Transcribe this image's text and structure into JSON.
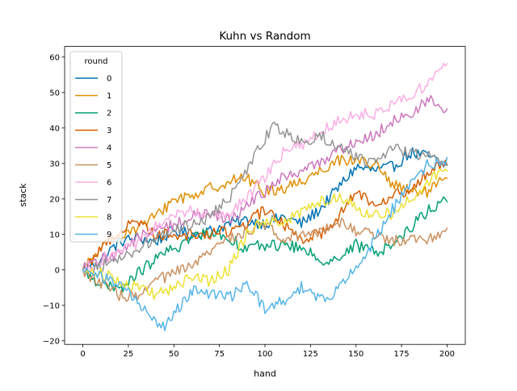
{
  "chart_data": {
    "type": "line",
    "title": "Kuhn vs Random",
    "xlabel": "hand",
    "ylabel": "stack",
    "xlim": [
      -10,
      210
    ],
    "ylim": [
      -21,
      63
    ],
    "xticks": [
      0,
      25,
      50,
      75,
      100,
      125,
      150,
      175,
      200
    ],
    "yticks": [
      -20,
      -10,
      0,
      10,
      20,
      30,
      40,
      50,
      60
    ],
    "grid": false,
    "legend": {
      "title": "round",
      "placement": "top-left"
    },
    "series": [
      {
        "name": "0",
        "color": "#0173b2",
        "noise": 1.7,
        "anchors": [
          [
            0,
            0
          ],
          [
            10,
            3
          ],
          [
            20,
            8
          ],
          [
            30,
            9
          ],
          [
            40,
            8
          ],
          [
            50,
            11
          ],
          [
            60,
            10
          ],
          [
            70,
            11
          ],
          [
            80,
            13
          ],
          [
            90,
            14
          ],
          [
            100,
            13
          ],
          [
            110,
            15
          ],
          [
            120,
            13
          ],
          [
            130,
            17
          ],
          [
            140,
            23
          ],
          [
            150,
            29
          ],
          [
            160,
            28
          ],
          [
            170,
            29
          ],
          [
            180,
            33
          ],
          [
            190,
            32
          ],
          [
            200,
            29
          ]
        ]
      },
      {
        "name": "1",
        "color": "#de8f05",
        "noise": 1.7,
        "anchors": [
          [
            0,
            0
          ],
          [
            10,
            6
          ],
          [
            20,
            10
          ],
          [
            30,
            12
          ],
          [
            40,
            15
          ],
          [
            50,
            20
          ],
          [
            60,
            21
          ],
          [
            70,
            23
          ],
          [
            80,
            25
          ],
          [
            90,
            26
          ],
          [
            100,
            22
          ],
          [
            110,
            23
          ],
          [
            120,
            25
          ],
          [
            130,
            28
          ],
          [
            140,
            31
          ],
          [
            150,
            31
          ],
          [
            160,
            30
          ],
          [
            170,
            24
          ],
          [
            180,
            22
          ],
          [
            190,
            22
          ],
          [
            200,
            26
          ]
        ]
      },
      {
        "name": "2",
        "color": "#029e73",
        "noise": 1.7,
        "anchors": [
          [
            0,
            0
          ],
          [
            10,
            -4
          ],
          [
            20,
            -6
          ],
          [
            30,
            -1
          ],
          [
            40,
            3
          ],
          [
            50,
            6
          ],
          [
            60,
            9
          ],
          [
            70,
            11
          ],
          [
            80,
            9
          ],
          [
            90,
            6
          ],
          [
            100,
            7
          ],
          [
            110,
            7
          ],
          [
            120,
            6
          ],
          [
            130,
            3
          ],
          [
            140,
            3
          ],
          [
            150,
            7
          ],
          [
            160,
            5
          ],
          [
            170,
            7
          ],
          [
            180,
            12
          ],
          [
            190,
            17
          ],
          [
            200,
            20
          ]
        ]
      },
      {
        "name": "3",
        "color": "#d55e00",
        "noise": 1.7,
        "anchors": [
          [
            0,
            0
          ],
          [
            10,
            6
          ],
          [
            20,
            11
          ],
          [
            30,
            14
          ],
          [
            40,
            10
          ],
          [
            50,
            10
          ],
          [
            60,
            10
          ],
          [
            70,
            10
          ],
          [
            80,
            11
          ],
          [
            90,
            13
          ],
          [
            100,
            17
          ],
          [
            110,
            13
          ],
          [
            120,
            9
          ],
          [
            130,
            10
          ],
          [
            140,
            15
          ],
          [
            150,
            22
          ],
          [
            160,
            19
          ],
          [
            170,
            21
          ],
          [
            180,
            22
          ],
          [
            190,
            28
          ],
          [
            200,
            31
          ]
        ]
      },
      {
        "name": "4",
        "color": "#cc78bc",
        "noise": 1.7,
        "anchors": [
          [
            0,
            0
          ],
          [
            10,
            3
          ],
          [
            20,
            5
          ],
          [
            30,
            9
          ],
          [
            40,
            11
          ],
          [
            50,
            13
          ],
          [
            60,
            15
          ],
          [
            70,
            16
          ],
          [
            80,
            14
          ],
          [
            90,
            18
          ],
          [
            100,
            22
          ],
          [
            110,
            26
          ],
          [
            120,
            28
          ],
          [
            130,
            30
          ],
          [
            140,
            34
          ],
          [
            150,
            36
          ],
          [
            160,
            38
          ],
          [
            170,
            42
          ],
          [
            180,
            44
          ],
          [
            190,
            48
          ],
          [
            200,
            44
          ]
        ]
      },
      {
        "name": "5",
        "color": "#ca9161",
        "noise": 1.7,
        "anchors": [
          [
            0,
            0
          ],
          [
            10,
            -4
          ],
          [
            20,
            -7
          ],
          [
            30,
            -8
          ],
          [
            40,
            -3
          ],
          [
            50,
            -1
          ],
          [
            60,
            1
          ],
          [
            70,
            5
          ],
          [
            80,
            9
          ],
          [
            90,
            11
          ],
          [
            100,
            13
          ],
          [
            110,
            9
          ],
          [
            120,
            10
          ],
          [
            130,
            11
          ],
          [
            140,
            14
          ],
          [
            150,
            11
          ],
          [
            160,
            10
          ],
          [
            170,
            8
          ],
          [
            180,
            9
          ],
          [
            190,
            9
          ],
          [
            200,
            11
          ]
        ]
      },
      {
        "name": "6",
        "color": "#fbafe4",
        "noise": 1.7,
        "anchors": [
          [
            0,
            0
          ],
          [
            10,
            3
          ],
          [
            20,
            5
          ],
          [
            30,
            7
          ],
          [
            40,
            12
          ],
          [
            50,
            15
          ],
          [
            60,
            17
          ],
          [
            70,
            15
          ],
          [
            80,
            16
          ],
          [
            90,
            20
          ],
          [
            100,
            26
          ],
          [
            110,
            33
          ],
          [
            120,
            35
          ],
          [
            130,
            39
          ],
          [
            140,
            42
          ],
          [
            150,
            44
          ],
          [
            160,
            44
          ],
          [
            170,
            47
          ],
          [
            180,
            49
          ],
          [
            190,
            53
          ],
          [
            200,
            58
          ]
        ]
      },
      {
        "name": "7",
        "color": "#949494",
        "noise": 1.7,
        "anchors": [
          [
            0,
            0
          ],
          [
            10,
            1
          ],
          [
            20,
            3
          ],
          [
            30,
            6
          ],
          [
            40,
            9
          ],
          [
            50,
            11
          ],
          [
            60,
            13
          ],
          [
            70,
            15
          ],
          [
            80,
            20
          ],
          [
            90,
            28
          ],
          [
            100,
            37
          ],
          [
            105,
            41
          ],
          [
            110,
            39
          ],
          [
            120,
            36
          ],
          [
            130,
            38
          ],
          [
            140,
            35
          ],
          [
            150,
            32
          ],
          [
            160,
            30
          ],
          [
            170,
            34
          ],
          [
            180,
            33
          ],
          [
            190,
            32
          ],
          [
            200,
            30
          ]
        ]
      },
      {
        "name": "8",
        "color": "#ece133",
        "noise": 1.7,
        "anchors": [
          [
            0,
            0
          ],
          [
            10,
            -1
          ],
          [
            20,
            -3
          ],
          [
            30,
            -5
          ],
          [
            40,
            -7
          ],
          [
            50,
            -5
          ],
          [
            60,
            -2
          ],
          [
            70,
            -3
          ],
          [
            80,
            0
          ],
          [
            85,
            5
          ],
          [
            90,
            10
          ],
          [
            100,
            14
          ],
          [
            110,
            14
          ],
          [
            120,
            16
          ],
          [
            130,
            19
          ],
          [
            140,
            21
          ],
          [
            150,
            18
          ],
          [
            160,
            15
          ],
          [
            170,
            16
          ],
          [
            180,
            20
          ],
          [
            190,
            25
          ],
          [
            200,
            29
          ]
        ]
      },
      {
        "name": "9",
        "color": "#56b4e9",
        "noise": 1.7,
        "anchors": [
          [
            0,
            0
          ],
          [
            10,
            -2
          ],
          [
            20,
            -4
          ],
          [
            30,
            -9
          ],
          [
            40,
            -15
          ],
          [
            45,
            -16
          ],
          [
            50,
            -12
          ],
          [
            60,
            -6
          ],
          [
            70,
            -7
          ],
          [
            80,
            -8
          ],
          [
            90,
            -4
          ],
          [
            100,
            -11
          ],
          [
            110,
            -9
          ],
          [
            120,
            -5
          ],
          [
            130,
            -8
          ],
          [
            140,
            -6
          ],
          [
            150,
            1
          ],
          [
            160,
            8
          ],
          [
            170,
            17
          ],
          [
            180,
            24
          ],
          [
            190,
            30
          ],
          [
            200,
            30
          ]
        ]
      }
    ]
  }
}
